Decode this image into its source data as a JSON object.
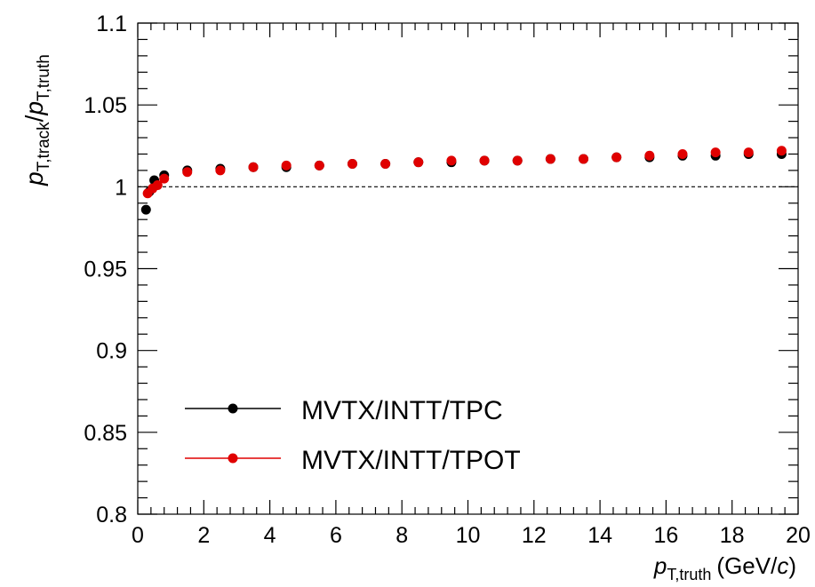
{
  "chart_data": {
    "type": "scatter",
    "xlim": [
      0,
      20
    ],
    "ylim": [
      0.8,
      1.1
    ],
    "x_ticks": [
      "0",
      "2",
      "4",
      "6",
      "8",
      "10",
      "12",
      "14",
      "16",
      "18",
      "20"
    ],
    "y_ticks": [
      "0.8",
      "0.85",
      "0.9",
      "0.95",
      "1",
      "1.05",
      "1.1"
    ],
    "reference_line_y": 1,
    "legend_placement": "bottom-left",
    "xlabel": {
      "sym": "p",
      "sub": "T,truth",
      "unit_pre": "(GeV/",
      "unit_c": "c",
      "unit_post": ")"
    },
    "ylabel": {
      "sym1": "p",
      "sub1": "T,track",
      "slash": "/",
      "sym2": "p",
      "sub2": "T,truth"
    },
    "series": [
      {
        "name": "MVTX/INTT/TPC",
        "color": "#000000",
        "x": [
          0.25,
          0.35,
          0.5,
          0.8,
          1.5,
          2.5,
          3.5,
          4.5,
          5.5,
          6.5,
          7.5,
          8.5,
          9.5,
          10.5,
          11.5,
          12.5,
          13.5,
          14.5,
          15.5,
          16.5,
          17.5,
          18.5,
          19.5
        ],
        "y": [
          0.986,
          0.997,
          1.004,
          1.007,
          1.01,
          1.011,
          1.012,
          1.012,
          1.013,
          1.014,
          1.014,
          1.015,
          1.015,
          1.016,
          1.016,
          1.017,
          1.017,
          1.018,
          1.018,
          1.019,
          1.019,
          1.02,
          1.02
        ]
      },
      {
        "name": "MVTX/INTT/TPOT",
        "color": "#e00000",
        "x": [
          0.3,
          0.45,
          0.6,
          0.8,
          1.5,
          2.5,
          3.5,
          4.5,
          5.5,
          6.5,
          7.5,
          8.5,
          9.5,
          10.5,
          11.5,
          12.5,
          13.5,
          14.5,
          15.5,
          16.5,
          17.5,
          18.5,
          19.5
        ],
        "y": [
          0.996,
          0.999,
          1.001,
          1.005,
          1.009,
          1.01,
          1.012,
          1.013,
          1.013,
          1.014,
          1.014,
          1.015,
          1.016,
          1.016,
          1.016,
          1.017,
          1.017,
          1.018,
          1.019,
          1.02,
          1.021,
          1.021,
          1.022
        ]
      }
    ]
  }
}
